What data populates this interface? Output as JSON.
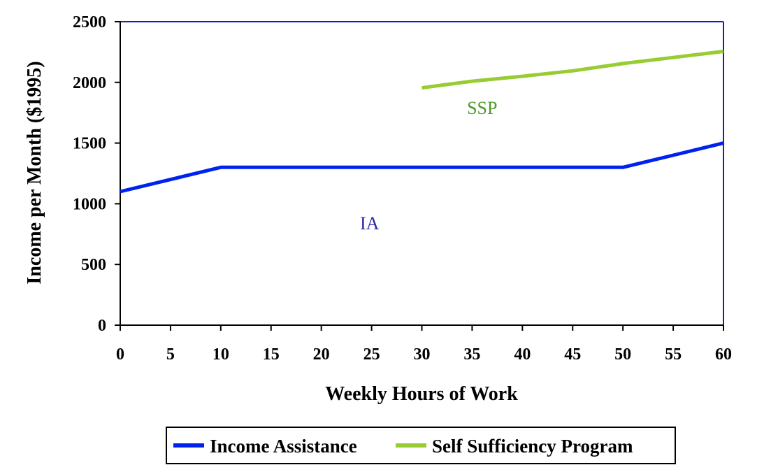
{
  "chart_data": {
    "type": "line",
    "xlabel": "Weekly Hours of Work",
    "ylabel": "Income per Month ($1995)",
    "xlim": [
      0,
      60
    ],
    "ylim": [
      0,
      2500
    ],
    "x_ticks": [
      0,
      5,
      10,
      15,
      20,
      25,
      30,
      35,
      40,
      45,
      50,
      55,
      60
    ],
    "y_ticks": [
      0,
      500,
      1000,
      1500,
      2000,
      2500
    ],
    "grid": false,
    "legend_position": "bottom",
    "series": [
      {
        "name": "Income Assistance",
        "color": "#0022ee",
        "x": [
          0,
          5,
          10,
          15,
          20,
          25,
          30,
          35,
          40,
          45,
          50,
          55,
          60
        ],
        "y": [
          1100,
          1200,
          1300,
          1300,
          1300,
          1300,
          1300,
          1300,
          1300,
          1300,
          1300,
          1400,
          1500
        ]
      },
      {
        "name": "Self Sufficiency Program",
        "color": "#99cc33",
        "x": [
          30,
          35,
          40,
          45,
          50,
          55,
          60
        ],
        "y": [
          1955,
          2010,
          2050,
          2095,
          2155,
          2205,
          2255
        ]
      }
    ],
    "annotations": [
      {
        "text": "SSP",
        "x": 36,
        "y": 1740,
        "color": "#4a9a2a"
      },
      {
        "text": "IA",
        "x": 24.8,
        "y": 790,
        "color": "#2a2aa0"
      }
    ]
  }
}
